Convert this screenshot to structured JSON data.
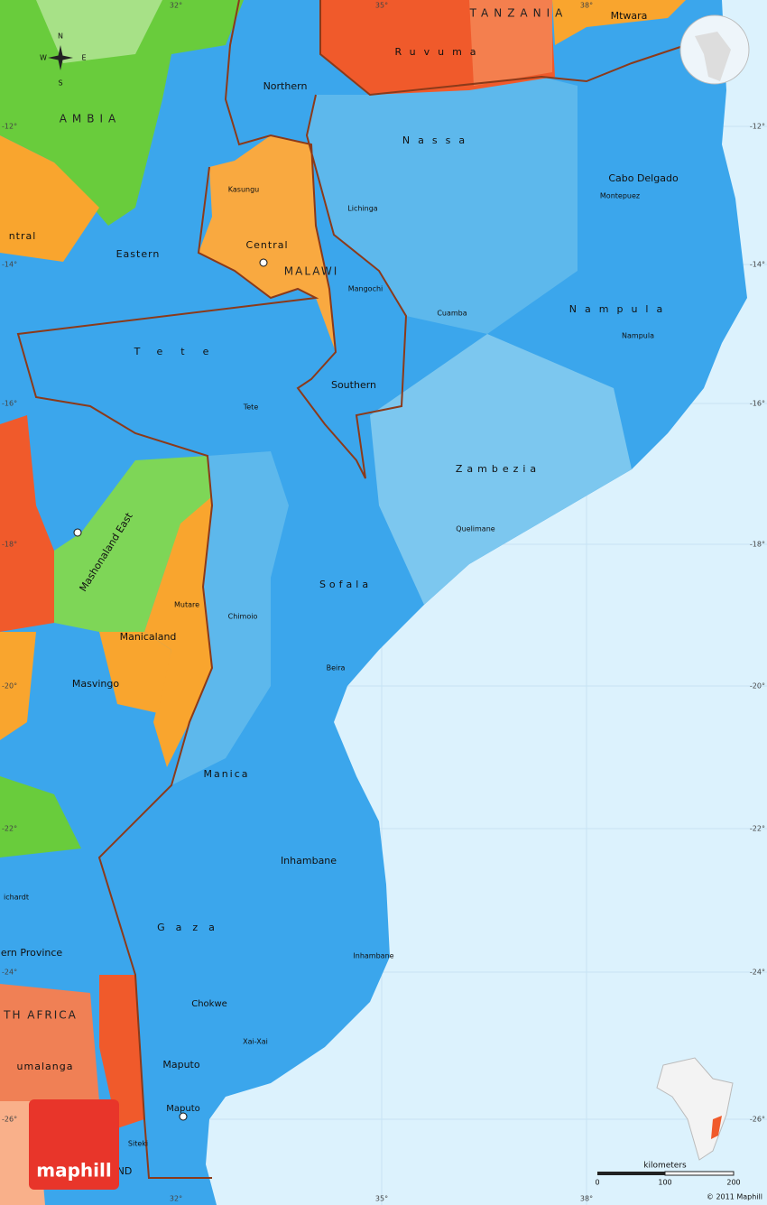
{
  "graticule": {
    "top": [
      "32°",
      "35°",
      "38°"
    ],
    "bottom": [
      "32°",
      "35°",
      "38°"
    ],
    "left": [
      "-12°",
      "-14°",
      "-16°",
      "-18°",
      "-20°",
      "-22°",
      "-24°",
      "-26°"
    ],
    "right": [
      "-12°",
      "-14°",
      "-16°",
      "-18°",
      "-20°",
      "-22°",
      "-24°",
      "-26°"
    ]
  },
  "countries": [
    "TANZANIA",
    "AMBIA",
    "MALAWI",
    "TH AFRICA"
  ],
  "regions": [
    "Ruvuma",
    "Mtwara",
    "Northern",
    "Nassa",
    "Cabo Delgado",
    "Central",
    "Eastern",
    "ntral",
    "Nampula",
    "Tete",
    "Southern",
    "Zambezia",
    "Mashonaland East",
    "Sofala",
    "Manicaland",
    "Masvingo",
    "Manica",
    "Inhambane",
    "ichardt",
    "Gaza",
    "ern Province",
    "umalanga",
    "Maputo",
    "ND"
  ],
  "cities": [
    "Montepuez",
    "Lichinga",
    "Kasungu",
    "Mangochi",
    "Cuamba",
    "Nampula",
    "Tete",
    "Quelimane",
    "Mutare",
    "Chimoio",
    "Beira",
    "Inhambane",
    "Chokwe",
    "Xai-Xai",
    "Maputo",
    "Siteki"
  ],
  "compass": [
    "N",
    "W",
    "E",
    "S"
  ],
  "scale": {
    "unit": "kilometers",
    "ticks": [
      0,
      100,
      200
    ]
  },
  "logo": "maphill",
  "copyright": "© 2011 Maphill"
}
